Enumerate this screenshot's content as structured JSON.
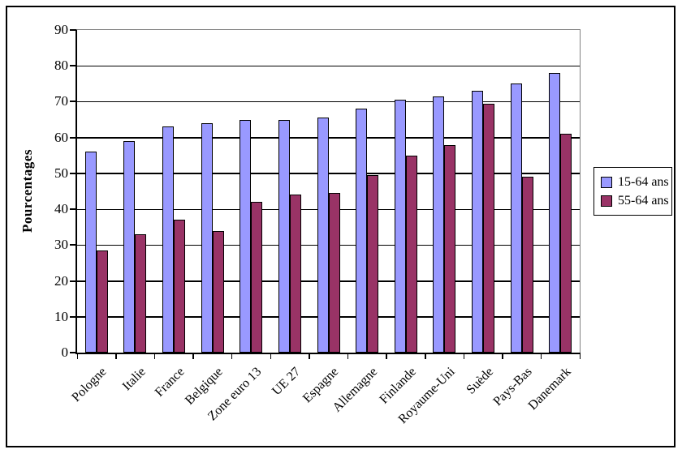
{
  "chart_data": {
    "type": "bar",
    "title": "",
    "ylabel": "Pourcentages",
    "categories": [
      "Pologne",
      "Italie",
      "France",
      "Belgique",
      "Zone euro 13",
      "UE 27",
      "Espagne",
      "Allemagne",
      "Finlande",
      "Royaume-Uni",
      "Suède",
      "Pays-Bas",
      "Danemark"
    ],
    "series": [
      {
        "name": "15-64 ans",
        "color": "#9999FF",
        "values": [
          56,
          59,
          63,
          64,
          65,
          65,
          65.5,
          68,
          70.5,
          71.5,
          73,
          75,
          78
        ]
      },
      {
        "name": "55-64 ans",
        "color": "#993366",
        "values": [
          28.5,
          33,
          37,
          34,
          42,
          44,
          44.5,
          49.5,
          55,
          58,
          69.5,
          49,
          61
        ]
      }
    ],
    "ylim": [
      0,
      90
    ],
    "ytick_step": 10,
    "yticks": [
      "0",
      "10",
      "20",
      "30",
      "40",
      "50",
      "60",
      "70",
      "80",
      "90"
    ],
    "grid": true,
    "legend_position": "right",
    "axis_color": "#000000",
    "plot_border_color": "#808080",
    "gridline_color": "#000000",
    "background_color": "#FFFFFF"
  }
}
